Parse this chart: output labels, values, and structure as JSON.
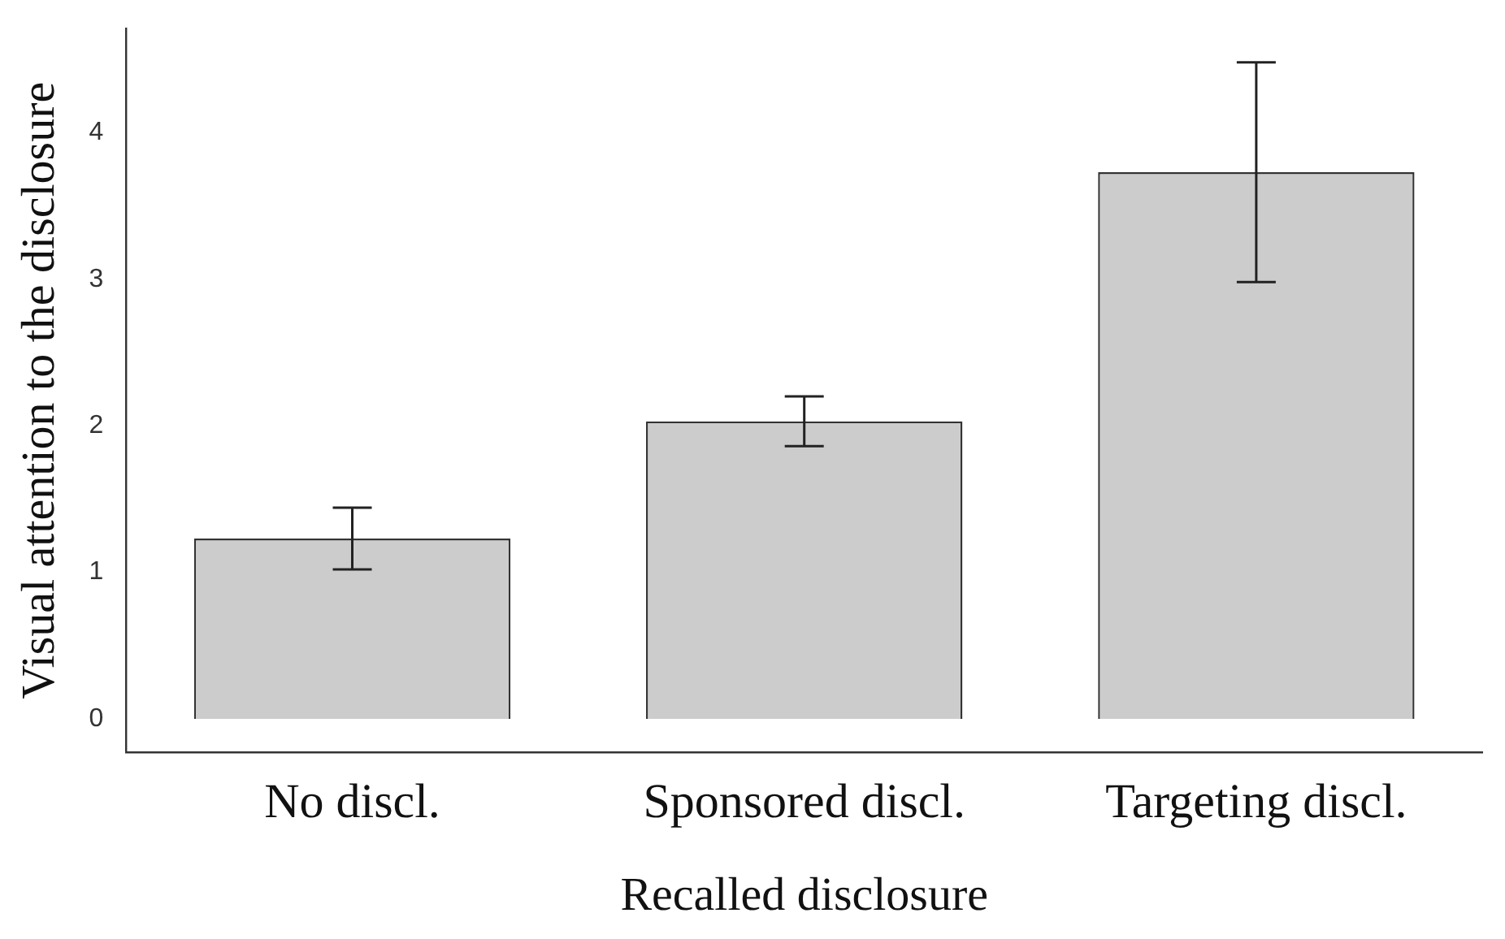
{
  "chart_data": {
    "type": "bar",
    "xlabel": "Recalled disclosure",
    "ylabel": "Visual attention to the disclosure",
    "categories": [
      "No discl.",
      "Sponsored discl.",
      "Targeting discl."
    ],
    "values": [
      1.23,
      2.03,
      3.73
    ],
    "errors": [
      [
        1.02,
        1.44
      ],
      [
        1.86,
        2.2
      ],
      [
        2.98,
        4.48
      ]
    ],
    "color": "#cccccc",
    "ylim": [
      -0.23,
      4.71
    ],
    "yticks": [
      0,
      1,
      2,
      3,
      4
    ],
    "grid": false,
    "legend": false
  }
}
